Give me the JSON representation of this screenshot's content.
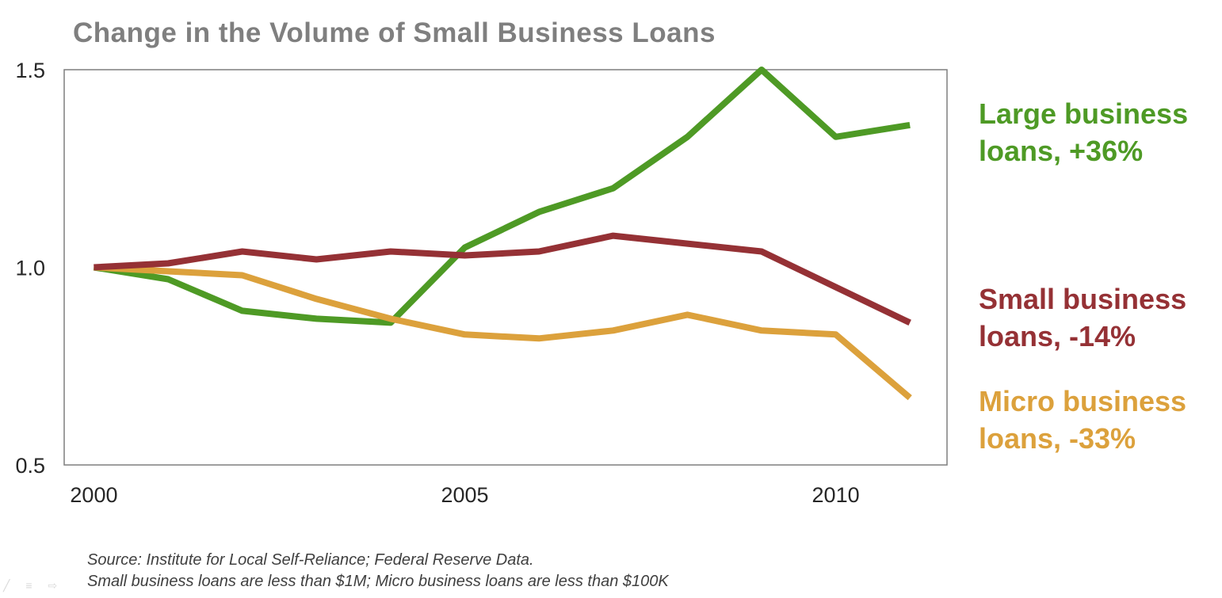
{
  "chart_data": {
    "type": "line",
    "title": "Change in the Volume of Small Business Loans",
    "xlabel": "",
    "ylabel": "",
    "x": [
      2000,
      2001,
      2002,
      2003,
      2004,
      2005,
      2006,
      2007,
      2008,
      2009,
      2010,
      2011
    ],
    "xticks": [
      "2000",
      "2005",
      "2010"
    ],
    "yticks": [
      "0.5",
      "1.0",
      "1.5"
    ],
    "xlim": [
      1999.6,
      2011.5
    ],
    "ylim": [
      0.5,
      1.5
    ],
    "grid": false,
    "legend_position": "right",
    "series": [
      {
        "name": "Large business loans, +36%",
        "label_lines": [
          "Large business",
          "loans, +36%"
        ],
        "color": "#4e9a25",
        "values": [
          1.0,
          0.97,
          0.89,
          0.87,
          0.86,
          1.05,
          1.14,
          1.2,
          1.33,
          1.5,
          1.33,
          1.36
        ]
      },
      {
        "name": "Small business loans, -14%",
        "label_lines": [
          "Small business",
          "loans, -14%"
        ],
        "color": "#953135",
        "values": [
          1.0,
          1.01,
          1.04,
          1.02,
          1.04,
          1.03,
          1.04,
          1.08,
          1.06,
          1.04,
          0.95,
          0.86
        ]
      },
      {
        "name": "Micro business loans, -33%",
        "label_lines": [
          "Micro business",
          "loans, -33%"
        ],
        "color": "#dca13c",
        "values": [
          1.0,
          0.99,
          0.98,
          0.92,
          0.87,
          0.83,
          0.82,
          0.84,
          0.88,
          0.84,
          0.83,
          0.67
        ]
      }
    ]
  },
  "source_lines": [
    "Source: Institute for Local Self-Reliance; Federal Reserve Data.",
    "Small business loans are less than $1M; Micro business loans are less than $100K"
  ],
  "slide_controls": "╱ ≡ ⇨"
}
